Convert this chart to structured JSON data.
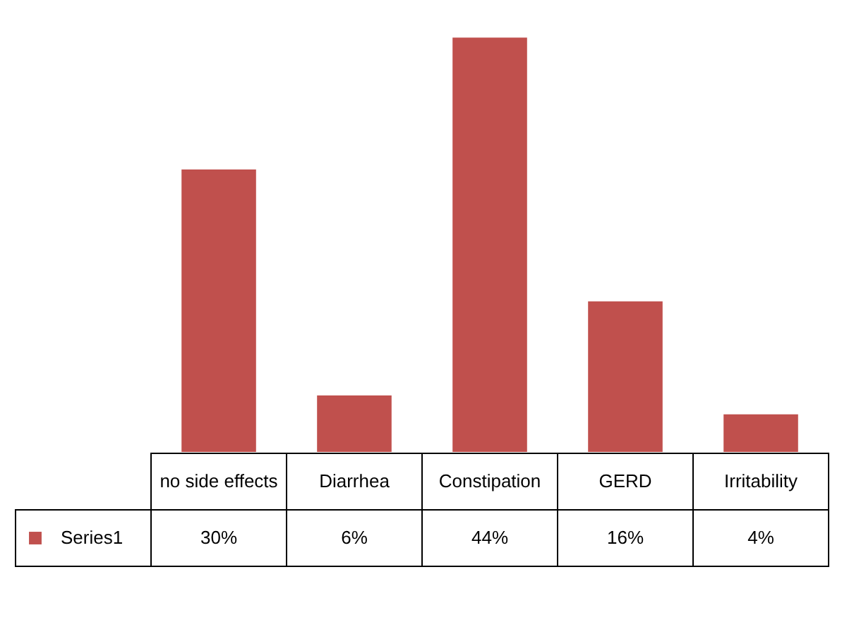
{
  "chart_data": {
    "type": "bar",
    "categories": [
      "no side effects",
      "Diarrhea",
      "Constipation",
      "GERD",
      "Irritability"
    ],
    "series": [
      {
        "name": "Series1",
        "color": "#c0504d",
        "values": [
          30,
          6,
          44,
          16,
          4
        ],
        "value_labels": [
          "30%",
          "6%",
          "44%",
          "16%",
          "4%"
        ]
      }
    ]
  }
}
